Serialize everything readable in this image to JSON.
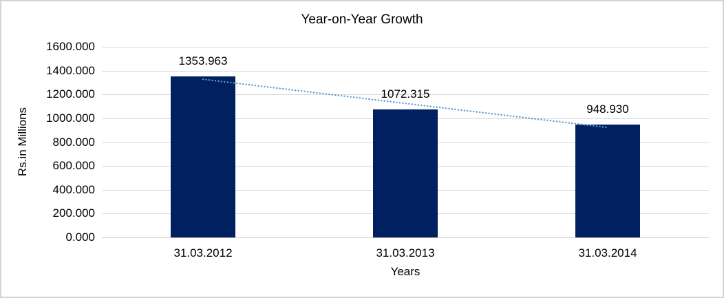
{
  "window": {
    "background": "#ffffff",
    "border_color": "#d4d4d4"
  },
  "chart_data": {
    "type": "bar",
    "title": "Year-on-Year Growth",
    "xlabel": "Years",
    "ylabel": "Rs.in Millions",
    "categories": [
      "31.03.2012",
      "31.03.2013",
      "31.03.2014"
    ],
    "values": [
      1353.963,
      1072.315,
      948.93
    ],
    "value_labels": [
      "1353.963",
      "1072.315",
      "948.930"
    ],
    "ylim": [
      0,
      1600
    ],
    "ytick_step": 200,
    "ytick_decimals": 3,
    "ytick_labels": [
      "0.000",
      "200.000",
      "400.000",
      "600.000",
      "800.000",
      "1000.000",
      "1200.000",
      "1400.000",
      "1600.000"
    ],
    "grid": true,
    "legend_position": "none",
    "colors": {
      "bar": "#002060",
      "gridline": "#d9d9d9",
      "axis_line": "#c9c9c9",
      "text": "#000000",
      "trendline": "#5b9bd5"
    },
    "trendline": {
      "type": "linear",
      "style": "dotted",
      "color": "#5b9bd5"
    }
  }
}
